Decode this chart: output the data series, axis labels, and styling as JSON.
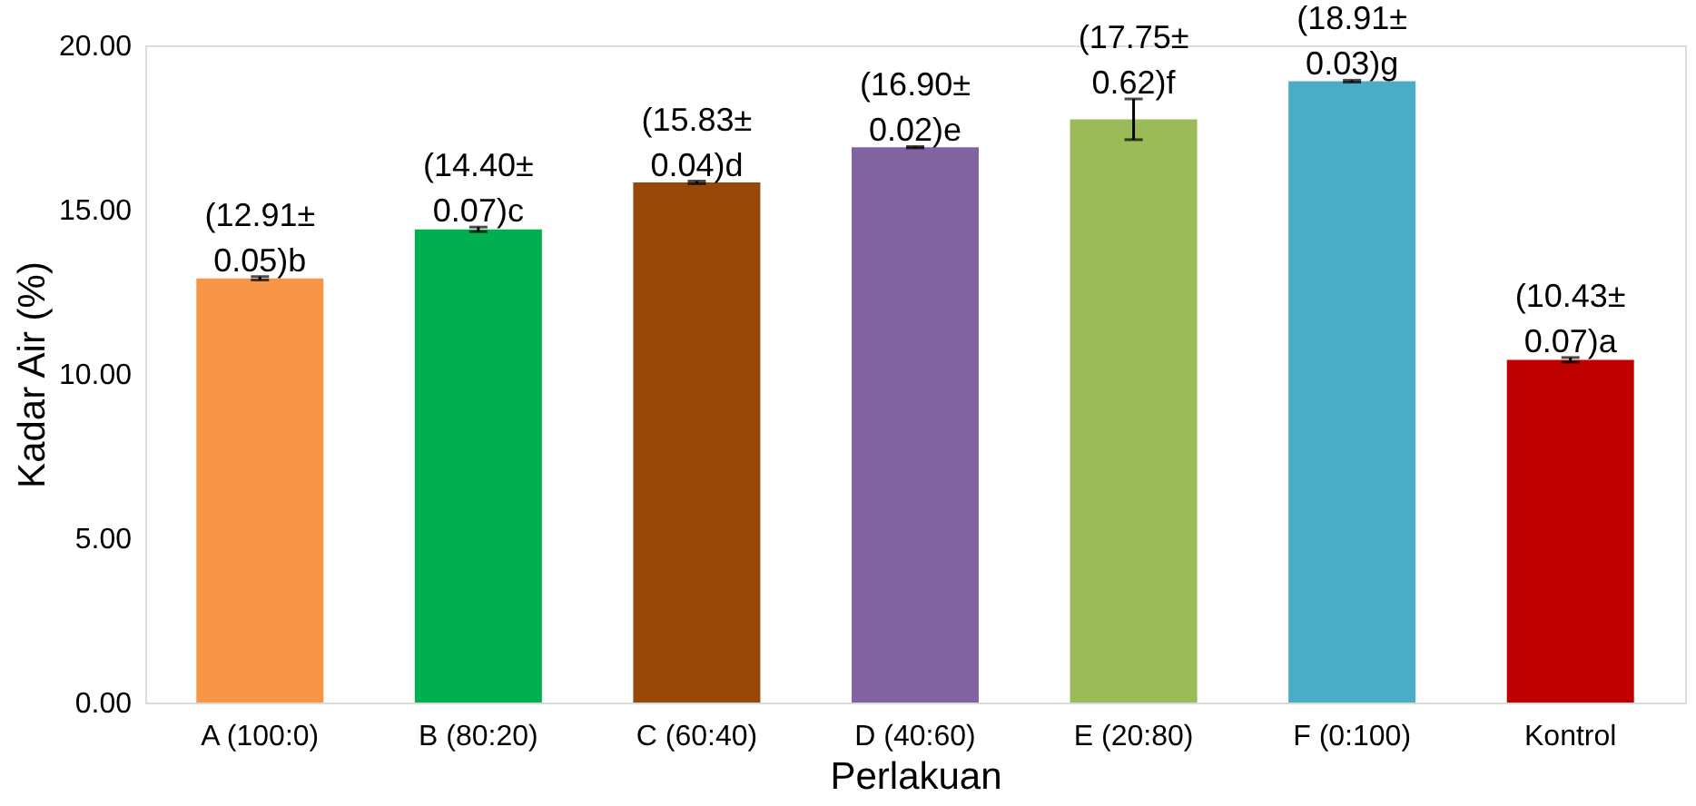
{
  "chart_data": {
    "type": "bar",
    "xlabel": "Perlakuan",
    "ylabel": "Kadar Air (%)",
    "categories": [
      "A (100:0)",
      "B (80:20)",
      "C (60:40)",
      "D (40:60)",
      "E (20:80)",
      "F (0:100)",
      "Kontrol"
    ],
    "values": [
      12.91,
      14.4,
      15.83,
      16.9,
      17.75,
      18.91,
      10.43
    ],
    "errors": [
      0.05,
      0.07,
      0.04,
      0.02,
      0.62,
      0.03,
      0.07
    ],
    "colors": [
      "#f79646",
      "#00b050",
      "#974706",
      "#8064a2",
      "#9bbb59",
      "#4bacc6",
      "#c00000"
    ],
    "value_labels": [
      "(12.91±\n0.05)b",
      "(14.40±\n0.07)c",
      "(15.83±\n0.04)d",
      "(16.90±\n0.02)e",
      "(17.75±\n0.62)f",
      "(18.91±\n0.03)g",
      "(10.43±\n0.07)a"
    ],
    "ylim": [
      0,
      20
    ],
    "yticks": [
      {
        "value": 0,
        "label": "0.00"
      },
      {
        "value": 5,
        "label": "5.00"
      },
      {
        "value": 10,
        "label": "10.00"
      },
      {
        "value": 15,
        "label": "15.00"
      },
      {
        "value": 20,
        "label": "20.00"
      }
    ],
    "grid": false
  }
}
